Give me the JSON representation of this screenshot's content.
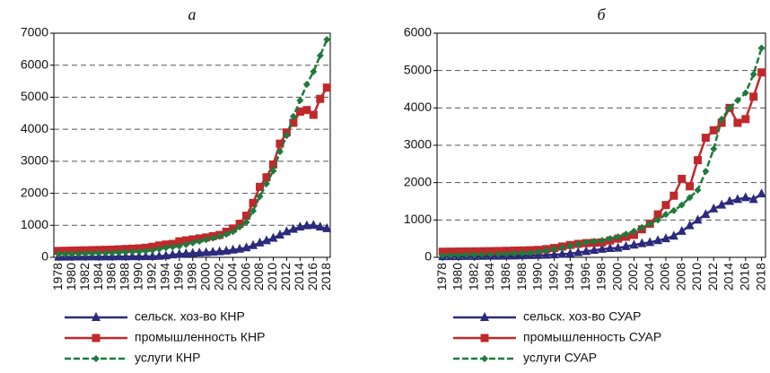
{
  "chart_data": [
    {
      "type": "line",
      "title": "а",
      "x": [
        1978,
        1979,
        1980,
        1981,
        1982,
        1983,
        1984,
        1985,
        1986,
        1987,
        1988,
        1989,
        1990,
        1991,
        1992,
        1993,
        1994,
        1995,
        1996,
        1997,
        1998,
        1999,
        2000,
        2001,
        2002,
        2003,
        2004,
        2005,
        2006,
        2007,
        2008,
        2009,
        2010,
        2011,
        2012,
        2013,
        2014,
        2015,
        2016,
        2017,
        2018
      ],
      "xlim": [
        1977.3,
        2018.5
      ],
      "xticks": [
        1978,
        1980,
        1982,
        1984,
        1986,
        1988,
        1990,
        1992,
        1994,
        1996,
        1998,
        2000,
        2002,
        2004,
        2006,
        2008,
        2010,
        2012,
        2014,
        2016,
        2018
      ],
      "ylim": [
        0,
        7000
      ],
      "yticks": [
        0,
        1000,
        2000,
        3000,
        4000,
        5000,
        6000,
        7000
      ],
      "grid": true,
      "series": [
        {
          "name": "сельск. хоз-во КНР",
          "color": "#2b2a7c",
          "marker": "triangle",
          "linestyle": "solid",
          "values": [
            10,
            12,
            14,
            15,
            16,
            17,
            18,
            19,
            20,
            21,
            22,
            23,
            24,
            25,
            28,
            35,
            50,
            80,
            100,
            115,
            130,
            140,
            150,
            165,
            180,
            200,
            230,
            260,
            300,
            370,
            450,
            520,
            600,
            700,
            800,
            880,
            950,
            990,
            1000,
            950,
            900
          ]
        },
        {
          "name": "промышленность КНР",
          "color": "#c0282b",
          "marker": "square",
          "linestyle": "solid",
          "values": [
            200,
            205,
            210,
            215,
            220,
            225,
            230,
            235,
            240,
            250,
            260,
            270,
            280,
            300,
            330,
            370,
            400,
            420,
            500,
            530,
            560,
            590,
            620,
            660,
            700,
            800,
            900,
            1050,
            1300,
            1700,
            2200,
            2500,
            2900,
            3550,
            3900,
            4200,
            4550,
            4600,
            4450,
            4950,
            5300
          ]
        },
        {
          "name": "услуги КНР",
          "color": "#1f7a3c",
          "marker": "diamond",
          "linestyle": "dashed",
          "values": [
            100,
            105,
            110,
            115,
            120,
            125,
            130,
            135,
            140,
            150,
            160,
            170,
            180,
            200,
            220,
            260,
            300,
            330,
            350,
            400,
            450,
            500,
            550,
            600,
            650,
            720,
            800,
            950,
            1100,
            1450,
            1900,
            2300,
            2700,
            3300,
            3800,
            4400,
            4900,
            5400,
            5800,
            6300,
            6800
          ]
        }
      ]
    },
    {
      "type": "line",
      "title": "б",
      "x": [
        1978,
        1979,
        1980,
        1981,
        1982,
        1983,
        1984,
        1985,
        1986,
        1987,
        1988,
        1989,
        1990,
        1991,
        1992,
        1993,
        1994,
        1995,
        1996,
        1997,
        1998,
        1999,
        2000,
        2001,
        2002,
        2003,
        2004,
        2005,
        2006,
        2007,
        2008,
        2009,
        2010,
        2011,
        2012,
        2013,
        2014,
        2015,
        2016,
        2017,
        2018
      ],
      "xlim": [
        1977.3,
        2018.5
      ],
      "xticks": [
        1978,
        1980,
        1982,
        1984,
        1986,
        1988,
        1990,
        1992,
        1994,
        1996,
        1998,
        2000,
        2002,
        2004,
        2006,
        2008,
        2010,
        2012,
        2014,
        2016,
        2018
      ],
      "ylim": [
        0,
        6000
      ],
      "yticks": [
        0,
        1000,
        2000,
        3000,
        4000,
        5000,
        6000
      ],
      "grid": true,
      "series": [
        {
          "name": "сельск. хоз-во СУАР",
          "color": "#2b2a7c",
          "marker": "triangle",
          "linestyle": "solid",
          "values": [
            20,
            22,
            24,
            26,
            28,
            30,
            32,
            34,
            36,
            40,
            45,
            50,
            55,
            60,
            70,
            85,
            100,
            130,
            160,
            190,
            220,
            240,
            250,
            290,
            330,
            370,
            400,
            450,
            500,
            570,
            700,
            850,
            1000,
            1150,
            1300,
            1400,
            1500,
            1550,
            1600,
            1550,
            1700
          ]
        },
        {
          "name": "промышленность СУАР",
          "color": "#c0282b",
          "marker": "square",
          "linestyle": "solid",
          "values": [
            150,
            152,
            155,
            158,
            160,
            163,
            166,
            170,
            175,
            180,
            185,
            190,
            200,
            220,
            250,
            290,
            330,
            360,
            380,
            390,
            400,
            450,
            500,
            550,
            600,
            750,
            900,
            1150,
            1400,
            1650,
            2100,
            1900,
            2600,
            3200,
            3400,
            3600,
            4000,
            3600,
            3700,
            4300,
            4950
          ]
        },
        {
          "name": "услуги СУАР",
          "color": "#1f7a3c",
          "marker": "diamond",
          "linestyle": "dashed",
          "values": [
            50,
            55,
            60,
            65,
            70,
            75,
            80,
            85,
            90,
            100,
            110,
            120,
            150,
            180,
            220,
            260,
            300,
            350,
            400,
            430,
            450,
            500,
            550,
            620,
            700,
            800,
            900,
            1000,
            1150,
            1250,
            1400,
            1600,
            1800,
            2300,
            2900,
            3700,
            4000,
            4200,
            4400,
            4900,
            5600
          ]
        }
      ]
    }
  ]
}
